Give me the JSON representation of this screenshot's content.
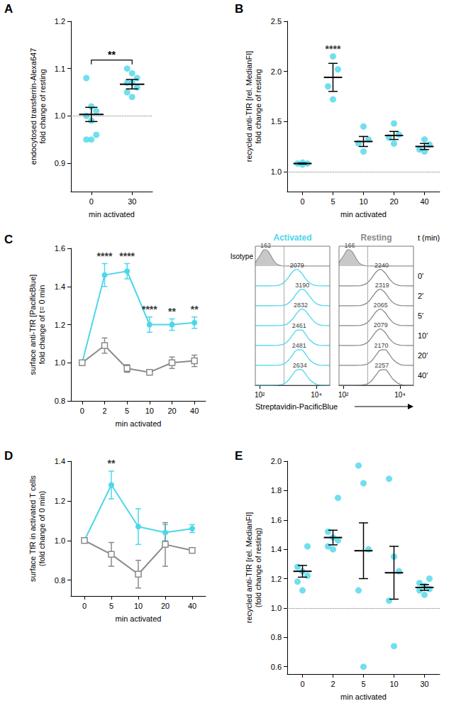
{
  "chart_data": [
    {
      "panel": "A",
      "type": "scatter",
      "xlabel": "min activated",
      "ylabel": "endocytosed transferrin-Alexa647\nfold change of resting",
      "categories": [
        "0",
        "30"
      ],
      "values": [
        [
          1.08,
          1.02,
          1.01,
          1.0,
          0.99,
          0.96,
          0.95,
          0.95
        ],
        [
          1.1,
          1.09,
          1.08,
          1.07,
          1.07,
          1.06,
          1.05,
          1.04
        ]
      ],
      "mean": [
        1.003,
        1.067
      ],
      "sem": [
        0.015,
        0.01
      ],
      "color": "#4cd7ea",
      "ylim": [
        0.84,
        1.2
      ],
      "yticks": [
        0.9,
        {
          "value": 1.0,
          "label": "1.0"
        },
        1.1,
        1.2
      ],
      "reference_line": 1.0,
      "annotations": [
        {
          "from": "0",
          "to": "30",
          "label": "**"
        }
      ]
    },
    {
      "panel": "B",
      "type": "scatter",
      "xlabel": "min activated",
      "ylabel": "recycled anti-TfR [rel. MedianFI]\nfold change of resting",
      "categories": [
        "0",
        "5",
        "10",
        "20",
        "40"
      ],
      "values": [
        [
          1.07,
          1.08,
          1.08,
          1.09
        ],
        [
          2.15,
          2.02,
          1.85,
          1.72
        ],
        [
          1.45,
          1.32,
          1.28,
          1.2
        ],
        [
          1.48,
          1.37,
          1.34,
          1.28
        ],
        [
          1.32,
          1.27,
          1.22,
          1.2
        ]
      ],
      "mean": [
        1.08,
        1.94,
        1.3,
        1.36,
        1.25
      ],
      "sem": [
        0.005,
        0.14,
        0.05,
        0.04,
        0.03
      ],
      "color": "#4cd7ea",
      "ylim": [
        0.8,
        2.5
      ],
      "yticks": [
        {
          "value": 1.0,
          "label": "1.0"
        },
        1.5,
        {
          "value": 2.0,
          "label": "2.0"
        },
        2.5
      ],
      "reference_line": 1.0,
      "annotations": [
        {
          "x": "5",
          "label": "****"
        }
      ]
    },
    {
      "panel": "C",
      "type": "line",
      "xlabel": "min activated",
      "ylabel": "surface anti-TfR [PacificBlue]\nfold change of t= 0 min",
      "categories": [
        "0",
        "2",
        "5",
        "10",
        "20",
        "40"
      ],
      "series": [
        {
          "name": "Activated",
          "color": "#4cd7ea",
          "marker": "circle",
          "values": [
            1.0,
            1.46,
            1.48,
            1.2,
            1.2,
            1.21
          ],
          "errors": [
            0,
            0.06,
            0.04,
            0.04,
            0.03,
            0.03
          ]
        },
        {
          "name": "Resting",
          "color": "#8a8a8a",
          "marker": "open square",
          "values": [
            1.0,
            1.09,
            0.97,
            0.95,
            1.0,
            1.01
          ],
          "errors": [
            0,
            0.04,
            0.02,
            0.01,
            0.03,
            0.03
          ]
        }
      ],
      "ylim": [
        0.8,
        1.6
      ],
      "yticks": [
        0.8,
        {
          "value": 1.0,
          "label": "1.0"
        },
        1.2,
        1.4,
        1.6
      ],
      "annotations": [
        {
          "x": "2",
          "label": "****",
          "series": "Activated"
        },
        {
          "x": "5",
          "label": "****",
          "series": "Activated"
        },
        {
          "x": "10",
          "label": "****",
          "series": "Activated"
        },
        {
          "x": "20",
          "label": "**",
          "series": "Activated"
        },
        {
          "x": "40",
          "label": "**",
          "series": "Activated"
        }
      ]
    },
    {
      "type": "histogram",
      "xlabel": "Streptavidin-PacificBlue",
      "row_header": "t (min)",
      "log": "x",
      "tick_labels": "x",
      "columns": [
        {
          "name": "Activated",
          "color": "#4cd7ea"
        },
        {
          "name": "Resting",
          "color": "#8a8a8a"
        }
      ],
      "x": [
        70,
        100,
        150,
        200,
        300,
        400,
        600,
        800,
        1000,
        1500,
        2000,
        3000,
        4000,
        6000,
        10000,
        15000,
        30000
      ],
      "xlim": [
        70,
        30000
      ],
      "xticks": [
        {
          "value": 100,
          "label": "10²"
        },
        {
          "value": 10000,
          "label": "10⁴"
        }
      ],
      "ylim": [
        0,
        1.2
      ],
      "reference_line": 700,
      "isotype": {
        "label": "Isotype",
        "color": "#c8c8c8",
        "curves": [
          {
            "median": 162,
            "values": [
              0.21,
              0.61,
              0.99,
              0.88,
              0.38,
              0.13,
              0.015,
              0.002,
              0,
              0,
              0,
              0,
              0,
              0,
              0,
              0,
              0
            ]
          },
          {
            "median": 166,
            "values": [
              0.21,
              0.61,
              0.99,
              0.88,
              0.38,
              0.13,
              0.015,
              0.002,
              0,
              0,
              0,
              0,
              0,
              0,
              0,
              0,
              0
            ]
          }
        ]
      },
      "rows": [
        {
          "label": "0′",
          "curves": [
            {
              "median": 2079,
              "values": [
                0,
                0,
                0,
                0,
                0.005,
                0.02,
                0.11,
                0.28,
                0.49,
                0.88,
                1.0,
                0.78,
                0.48,
                0.16,
                0.02,
                0.002,
                0
              ]
            },
            {
              "median": 2240,
              "values": [
                0,
                0,
                0,
                0,
                0.005,
                0.02,
                0.11,
                0.28,
                0.49,
                0.88,
                1.0,
                0.78,
                0.48,
                0.16,
                0.02,
                0.002,
                0
              ]
            }
          ]
        },
        {
          "label": "2′",
          "curves": [
            {
              "median": 3190,
              "values": [
                0,
                0,
                0,
                0,
                0,
                0.002,
                0.015,
                0.058,
                0.135,
                0.43,
                0.73,
                1.0,
                0.92,
                0.54,
                0.135,
                0.026,
                0
              ]
            },
            {
              "median": 2319,
              "values": [
                0,
                0,
                0,
                0,
                0.005,
                0.02,
                0.11,
                0.28,
                0.49,
                0.88,
                1.0,
                0.78,
                0.48,
                0.16,
                0.02,
                0.002,
                0
              ]
            }
          ]
        },
        {
          "label": "5′",
          "curves": [
            {
              "median": 2832,
              "values": [
                0,
                0,
                0,
                0,
                0,
                0.002,
                0.015,
                0.058,
                0.135,
                0.43,
                0.73,
                1.0,
                0.92,
                0.54,
                0.135,
                0.026,
                0
              ]
            },
            {
              "median": 2065,
              "values": [
                0,
                0,
                0,
                0,
                0.005,
                0.02,
                0.11,
                0.28,
                0.49,
                0.88,
                1.0,
                0.78,
                0.48,
                0.16,
                0.02,
                0.002,
                0
              ]
            }
          ]
        },
        {
          "label": "10′",
          "curves": [
            {
              "median": 2461,
              "values": [
                0,
                0,
                0,
                0,
                0.001,
                0.006,
                0.045,
                0.14,
                0.28,
                0.67,
                0.92,
                0.95,
                0.72,
                0.32,
                0.056,
                0.008,
                0
              ]
            },
            {
              "median": 2079,
              "values": [
                0,
                0,
                0,
                0,
                0.005,
                0.02,
                0.11,
                0.28,
                0.49,
                0.88,
                1.0,
                0.78,
                0.48,
                0.16,
                0.02,
                0.002,
                0
              ]
            }
          ]
        },
        {
          "label": "20′",
          "curves": [
            {
              "median": 2481,
              "values": [
                0,
                0,
                0,
                0,
                0.001,
                0.006,
                0.045,
                0.14,
                0.28,
                0.67,
                0.92,
                0.95,
                0.72,
                0.32,
                0.056,
                0.008,
                0
              ]
            },
            {
              "median": 2170,
              "values": [
                0,
                0,
                0,
                0,
                0.001,
                0.006,
                0.045,
                0.14,
                0.28,
                0.67,
                0.92,
                0.95,
                0.72,
                0.32,
                0.056,
                0.008,
                0
              ]
            }
          ]
        },
        {
          "label": "40′",
          "curves": [
            {
              "median": 2634,
              "values": [
                0,
                0,
                0,
                0,
                0.001,
                0.006,
                0.045,
                0.14,
                0.28,
                0.67,
                0.92,
                0.95,
                0.72,
                0.32,
                0.056,
                0.008,
                0
              ]
            },
            {
              "median": 2257,
              "values": [
                0,
                0,
                0,
                0,
                0.001,
                0.006,
                0.045,
                0.14,
                0.28,
                0.67,
                0.92,
                0.95,
                0.72,
                0.32,
                0.056,
                0.008,
                0
              ]
            }
          ]
        }
      ]
    },
    {
      "panel": "D",
      "type": "line",
      "xlabel": "min activated",
      "ylabel": "surface TfR in activated T cells\n(fold change of 0 min)",
      "categories": [
        "0",
        "5",
        "10",
        "20",
        "40"
      ],
      "series": [
        {
          "name": "Activated",
          "color": "#4cd7ea",
          "marker": "circle",
          "values": [
            1.0,
            1.28,
            1.07,
            1.04,
            1.06
          ],
          "errors": [
            0,
            0.07,
            0.09,
            0.04,
            0.02
          ]
        },
        {
          "name": "Resting",
          "color": "#8a8a8a",
          "marker": "open square",
          "values": [
            1.0,
            0.93,
            0.83,
            0.98,
            0.95
          ],
          "errors": [
            0,
            0.06,
            0.07,
            0.11,
            0.01
          ]
        }
      ],
      "ylim": [
        0.72,
        1.4
      ],
      "yticks": [
        0.8,
        {
          "value": 1.0,
          "label": "1.0"
        },
        1.2,
        1.4
      ],
      "annotations": [
        {
          "x": "5",
          "label": "**",
          "series": "Activated"
        }
      ]
    },
    {
      "panel": "E",
      "type": "scatter",
      "xlabel": "min activated",
      "ylabel": "recycled anti-TfR [rel. MedianFI]\n(fold change of resting)",
      "categories": [
        "0",
        "2",
        "5",
        "10",
        "30"
      ],
      "values": [
        [
          1.42,
          1.28,
          1.25,
          1.22,
          1.18,
          1.12
        ],
        [
          1.75,
          1.52,
          1.48,
          1.46,
          1.42,
          1.4
        ],
        [
          1.97,
          1.85,
          1.4,
          1.12,
          0.6
        ],
        [
          1.88,
          1.35,
          1.25,
          1.05,
          0.74
        ],
        [
          1.2,
          1.17,
          1.15,
          1.13,
          1.12,
          1.09
        ]
      ],
      "mean": [
        1.25,
        1.48,
        1.39,
        1.24,
        1.14
      ],
      "sem": [
        0.04,
        0.05,
        0.19,
        0.18,
        0.02
      ],
      "color": "#4cd7ea",
      "ylim": [
        0.55,
        2.0
      ],
      "yticks": [
        0.6,
        0.8,
        {
          "value": 1.0,
          "label": "1.0"
        },
        1.2,
        1.4,
        1.6,
        1.8,
        {
          "value": 2.0,
          "label": "2.0"
        }
      ],
      "reference_line": 1.0
    }
  ]
}
